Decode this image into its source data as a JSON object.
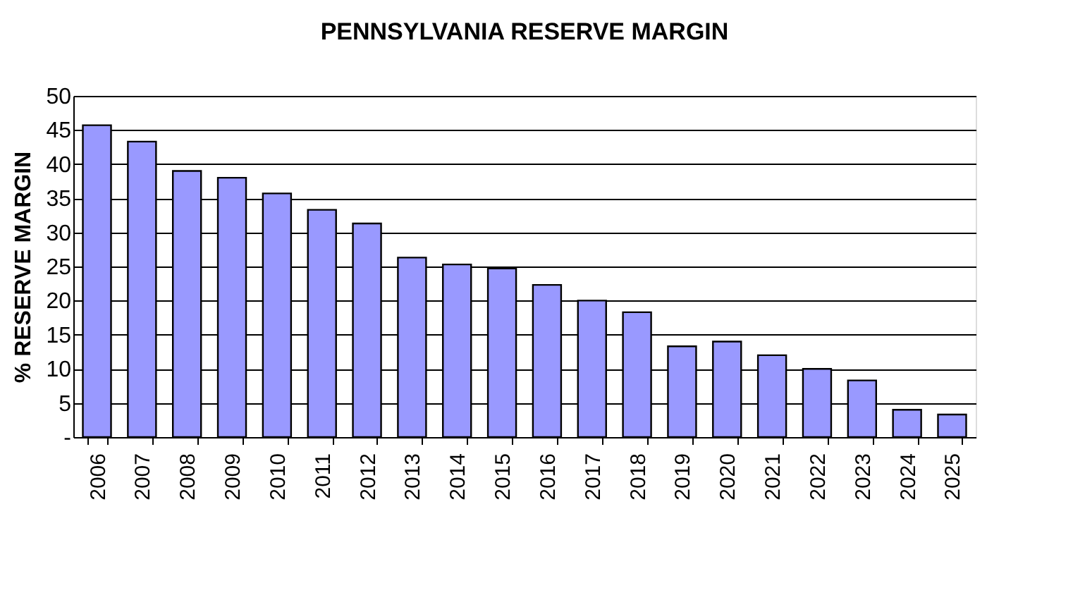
{
  "chart_data": {
    "type": "bar",
    "title": "PENNSYLVANIA RESERVE MARGIN",
    "ylabel": "% RESERVE MARGIN",
    "categories": [
      "2006",
      "2007",
      "2008",
      "2009",
      "2010",
      "2011",
      "2012",
      "2013",
      "2014",
      "2015",
      "2016",
      "2017",
      "2018",
      "2019",
      "2020",
      "2021",
      "2022",
      "2023",
      "2024",
      "2025"
    ],
    "values": [
      45.7,
      43.3,
      39,
      38,
      35.7,
      33.3,
      31.3,
      26.3,
      25.3,
      24.7,
      22.3,
      20,
      18.3,
      13.3,
      14,
      12,
      10,
      8.3,
      4,
      3.3
    ],
    "color": "#9999ff",
    "ylim": [
      0,
      50
    ],
    "yticks": [
      {
        "value": 0,
        "label": "-"
      },
      5,
      10,
      15,
      20,
      25,
      30,
      35,
      40,
      45,
      50
    ],
    "grid": "y"
  }
}
